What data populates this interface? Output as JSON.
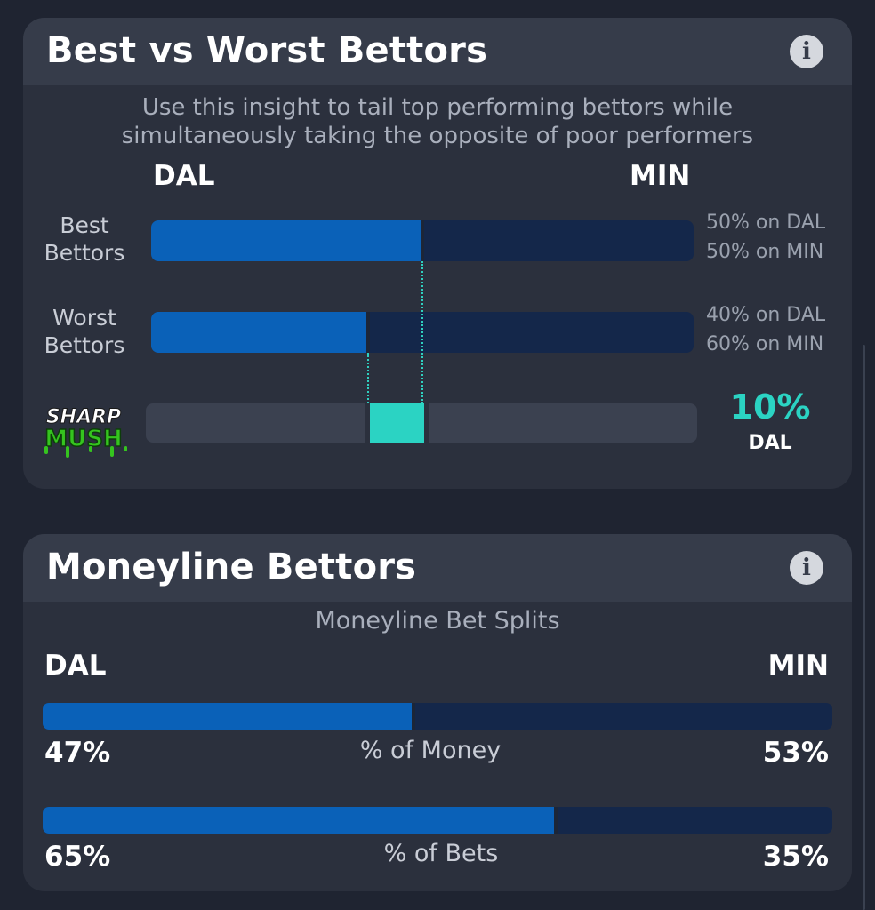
{
  "best_vs_worst": {
    "title": "Best vs Worst Bettors",
    "subtitle_line1": "Use this insight to tail top performing bettors while",
    "subtitle_line2": "simultaneously taking the opposite of poor performers",
    "team_left": "DAL",
    "team_right": "MIN",
    "rows": [
      {
        "label_line1": "Best",
        "label_line2": "Bettors",
        "dal_pct": 50,
        "min_pct": 50,
        "text_dal": "50% on DAL",
        "text_min": "50% on MIN"
      },
      {
        "label_line1": "Worst",
        "label_line2": "Bettors",
        "dal_pct": 40,
        "min_pct": 60,
        "text_dal": "40% on DAL",
        "text_min": "60% on MIN"
      }
    ],
    "logo_top": "SHARP",
    "logo_bottom": "MUSH",
    "difference_pct_text": "10%",
    "difference_team": "DAL",
    "difference_range": [
      40,
      50
    ]
  },
  "moneyline": {
    "title": "Moneyline Bettors",
    "subtitle": "Moneyline Bet Splits",
    "team_left": "DAL",
    "team_right": "MIN",
    "rows": [
      {
        "label": "% of Money",
        "dal_pct": 47,
        "min_pct": 53,
        "dal_text": "47%",
        "min_text": "53%"
      },
      {
        "label": "% of Bets",
        "dal_pct": 65,
        "min_pct": 35,
        "dal_text": "65%",
        "min_text": "35%"
      }
    ]
  },
  "colors": {
    "background": "#1f2431",
    "card": "#2b303d",
    "card_header": "#363c4a",
    "bar_dal": "#0a61b8",
    "bar_min": "#14274a",
    "accent_teal": "#2bd3c3"
  },
  "icons": {
    "info": "info-icon"
  }
}
